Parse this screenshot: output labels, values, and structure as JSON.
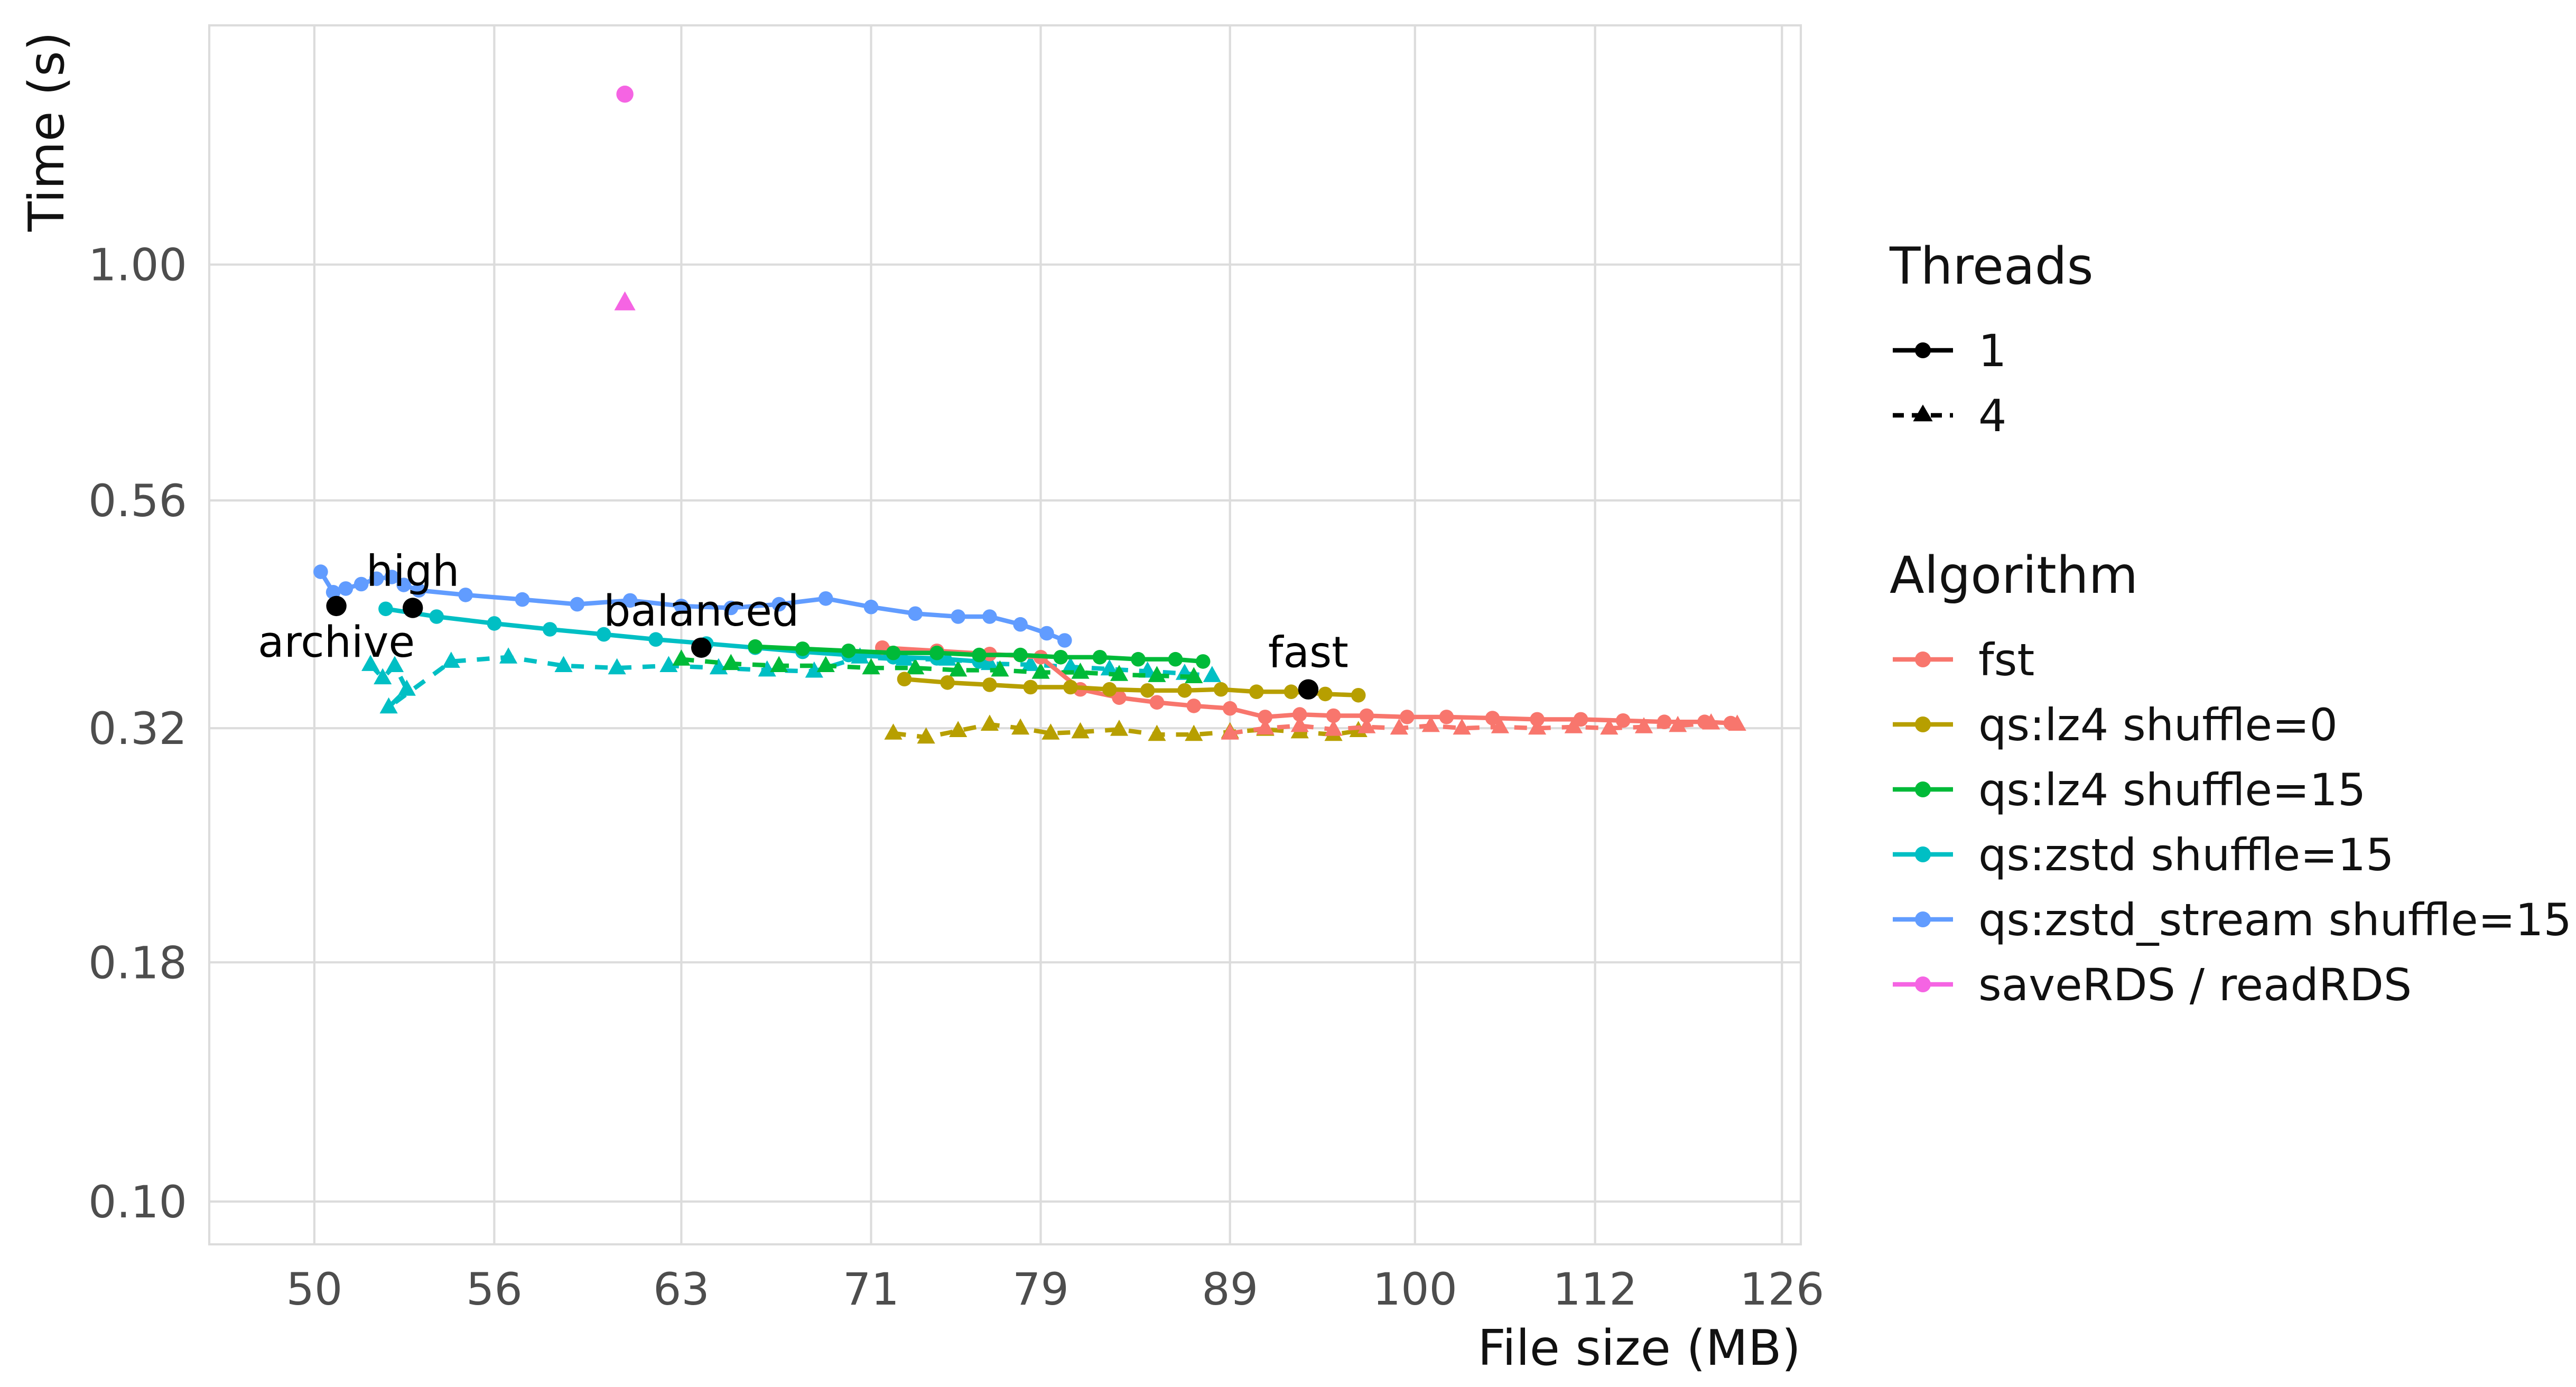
{
  "page": {
    "background": "#FFFFFF"
  },
  "legend": {
    "threads": {
      "title": "Threads",
      "items": [
        {
          "label": "1",
          "marker": "circle",
          "line": "solid"
        },
        {
          "label": "4",
          "marker": "triangle",
          "line": "dashed"
        }
      ]
    },
    "algorithm": {
      "title": "Algorithm",
      "items": [
        {
          "label": "fst",
          "color": "#F8766D"
        },
        {
          "label": "qs:lz4 shuffle=0",
          "color": "#B79F00"
        },
        {
          "label": "qs:lz4 shuffle=15",
          "color": "#00BA38"
        },
        {
          "label": "qs:zstd shuffle=15",
          "color": "#00BFC4"
        },
        {
          "label": "qs:zstd_stream shuffle=15",
          "color": "#619CFF"
        },
        {
          "label": "saveRDS / readRDS",
          "color": "#F564E3"
        }
      ]
    }
  },
  "chart_data": {
    "type": "line",
    "title": "",
    "xlabel": "File size (MB)",
    "ylabel": "Time (s)",
    "x_scale": "log10",
    "y_scale": "log10",
    "x_domain": [
      46.8,
      127.5
    ],
    "y_domain": [
      0.09,
      1.8
    ],
    "x_ticks": [
      50,
      56,
      63,
      71,
      79,
      89,
      100,
      112,
      126
    ],
    "x_tick_labels": [
      "50",
      "56",
      "63",
      "71",
      "79",
      "89",
      "100",
      "112",
      "126"
    ],
    "y_ticks": [
      0.1,
      0.18,
      0.32,
      0.56,
      1.0
    ],
    "y_tick_labels": [
      "0.10",
      "0.18",
      "0.32",
      "0.56",
      "1.00"
    ],
    "grid": true,
    "grid_color": "#DCDCDC",
    "legend_position": "right",
    "series": [
      {
        "name": "qs:zstd shuffle=15",
        "threads": 4,
        "color": "#00BFC4",
        "line": "dashed",
        "marker": "triangle",
        "points": [
          [
            51.8,
            0.374
          ],
          [
            52.2,
            0.362
          ],
          [
            52.6,
            0.373
          ],
          [
            53.0,
            0.352
          ],
          [
            52.4,
            0.337
          ],
          [
            54.5,
            0.377
          ],
          [
            56.5,
            0.381
          ],
          [
            58.5,
            0.373
          ],
          [
            60.5,
            0.371
          ],
          [
            62.5,
            0.373
          ],
          [
            64.5,
            0.371
          ],
          [
            66.5,
            0.369
          ],
          [
            68.5,
            0.368
          ],
          [
            70.5,
            0.381
          ],
          [
            72.5,
            0.379
          ],
          [
            74.5,
            0.379
          ],
          [
            76.5,
            0.375
          ],
          [
            78.5,
            0.374
          ],
          [
            80.5,
            0.372
          ],
          [
            82.5,
            0.37
          ],
          [
            84.5,
            0.368
          ],
          [
            86.5,
            0.366
          ],
          [
            88.0,
            0.364
          ]
        ]
      },
      {
        "name": "qs:lz4 shuffle=15",
        "threads": 4,
        "color": "#00BA38",
        "line": "dashed",
        "marker": "triangle",
        "points": [
          [
            63.0,
            0.379
          ],
          [
            65.0,
            0.375
          ],
          [
            67.0,
            0.373
          ],
          [
            69.0,
            0.373
          ],
          [
            71.0,
            0.371
          ],
          [
            73.0,
            0.371
          ],
          [
            75.0,
            0.369
          ],
          [
            77.0,
            0.369
          ],
          [
            79.0,
            0.367
          ],
          [
            81.0,
            0.367
          ],
          [
            83.0,
            0.365
          ],
          [
            85.0,
            0.364
          ],
          [
            87.0,
            0.363
          ]
        ]
      },
      {
        "name": "qs:lz4 shuffle=0",
        "threads": 4,
        "color": "#B79F00",
        "line": "dashed",
        "marker": "triangle",
        "points": [
          [
            72.0,
            0.316
          ],
          [
            73.5,
            0.313
          ],
          [
            75.0,
            0.318
          ],
          [
            76.5,
            0.323
          ],
          [
            78.0,
            0.32
          ],
          [
            79.5,
            0.316
          ],
          [
            81.0,
            0.317
          ],
          [
            83.0,
            0.319
          ],
          [
            85.0,
            0.315
          ],
          [
            87.0,
            0.315
          ],
          [
            89.0,
            0.317
          ],
          [
            91.0,
            0.319
          ],
          [
            93.0,
            0.317
          ],
          [
            95.0,
            0.315
          ],
          [
            96.5,
            0.318
          ]
        ]
      },
      {
        "name": "fst",
        "threads": 4,
        "color": "#F8766D",
        "line": "dashed",
        "marker": "triangle",
        "points": [
          [
            89.0,
            0.316
          ],
          [
            91.0,
            0.32
          ],
          [
            93.0,
            0.322
          ],
          [
            95.0,
            0.319
          ],
          [
            97.0,
            0.321
          ],
          [
            99.0,
            0.32
          ],
          [
            101.0,
            0.322
          ],
          [
            103.0,
            0.32
          ],
          [
            105.5,
            0.321
          ],
          [
            108.0,
            0.32
          ],
          [
            110.5,
            0.321
          ],
          [
            113.0,
            0.32
          ],
          [
            115.5,
            0.321
          ],
          [
            118.0,
            0.322
          ],
          [
            120.5,
            0.324
          ],
          [
            122.5,
            0.323
          ]
        ]
      },
      {
        "name": "qs:zstd_stream shuffle=15",
        "threads": 1,
        "color": "#619CFF",
        "line": "solid",
        "marker": "circle",
        "points": [
          [
            50.2,
            0.47
          ],
          [
            50.6,
            0.447
          ],
          [
            51.0,
            0.451
          ],
          [
            51.5,
            0.456
          ],
          [
            52.0,
            0.462
          ],
          [
            52.5,
            0.464
          ],
          [
            52.9,
            0.455
          ],
          [
            53.4,
            0.449
          ],
          [
            55.0,
            0.444
          ],
          [
            57.0,
            0.439
          ],
          [
            59.0,
            0.434
          ],
          [
            61.0,
            0.438
          ],
          [
            63.0,
            0.432
          ],
          [
            65.0,
            0.43
          ],
          [
            67.0,
            0.434
          ],
          [
            69.0,
            0.44
          ],
          [
            71.0,
            0.431
          ],
          [
            73.0,
            0.424
          ],
          [
            75.0,
            0.421
          ],
          [
            76.5,
            0.421
          ],
          [
            78.0,
            0.413
          ],
          [
            79.3,
            0.404
          ],
          [
            80.2,
            0.397
          ]
        ]
      },
      {
        "name": "qs:zstd shuffle=15",
        "threads": 1,
        "color": "#00BFC4",
        "line": "solid",
        "marker": "circle",
        "points": [
          [
            52.3,
            0.429
          ],
          [
            54.0,
            0.421
          ],
          [
            56.0,
            0.414
          ],
          [
            58.0,
            0.408
          ],
          [
            60.0,
            0.403
          ],
          [
            62.0,
            0.398
          ],
          [
            64.0,
            0.394
          ],
          [
            66.0,
            0.39
          ],
          [
            68.0,
            0.386
          ],
          [
            70.0,
            0.383
          ],
          [
            72.0,
            0.381
          ],
          [
            74.0,
            0.38
          ],
          [
            76.0,
            0.377
          ]
        ]
      },
      {
        "name": "fst",
        "threads": 1,
        "color": "#F8766D",
        "line": "solid",
        "marker": "circle",
        "points": [
          [
            71.5,
            0.39
          ],
          [
            74.0,
            0.387
          ],
          [
            76.5,
            0.384
          ],
          [
            79.0,
            0.381
          ],
          [
            81.0,
            0.352
          ],
          [
            83.0,
            0.345
          ],
          [
            85.0,
            0.341
          ],
          [
            87.0,
            0.338
          ],
          [
            89.0,
            0.336
          ],
          [
            91.0,
            0.329
          ],
          [
            93.0,
            0.331
          ],
          [
            95.0,
            0.33
          ],
          [
            97.0,
            0.33
          ],
          [
            99.5,
            0.329
          ],
          [
            102.0,
            0.329
          ],
          [
            105.0,
            0.328
          ],
          [
            108.0,
            0.327
          ],
          [
            111.0,
            0.327
          ],
          [
            114.0,
            0.326
          ],
          [
            117.0,
            0.325
          ],
          [
            120.0,
            0.325
          ],
          [
            122.0,
            0.324
          ]
        ]
      },
      {
        "name": "qs:lz4 shuffle=15",
        "threads": 1,
        "color": "#00BA38",
        "line": "solid",
        "marker": "circle",
        "points": [
          [
            66.0,
            0.391
          ],
          [
            68.0,
            0.389
          ],
          [
            70.0,
            0.387
          ],
          [
            72.0,
            0.385
          ],
          [
            74.0,
            0.385
          ],
          [
            76.0,
            0.383
          ],
          [
            78.0,
            0.383
          ],
          [
            80.0,
            0.381
          ],
          [
            82.0,
            0.381
          ],
          [
            84.0,
            0.379
          ],
          [
            86.0,
            0.379
          ],
          [
            87.5,
            0.377
          ]
        ]
      },
      {
        "name": "qs:lz4 shuffle=0",
        "threads": 1,
        "color": "#B79F00",
        "line": "solid",
        "marker": "circle",
        "points": [
          [
            72.5,
            0.361
          ],
          [
            74.5,
            0.358
          ],
          [
            76.5,
            0.356
          ],
          [
            78.5,
            0.354
          ],
          [
            80.5,
            0.354
          ],
          [
            82.5,
            0.352
          ],
          [
            84.5,
            0.351
          ],
          [
            86.5,
            0.351
          ],
          [
            88.5,
            0.352
          ],
          [
            90.5,
            0.35
          ],
          [
            92.5,
            0.35
          ],
          [
            94.5,
            0.348
          ],
          [
            96.5,
            0.347
          ]
        ]
      },
      {
        "name": "saveRDS / readRDS",
        "threads": 1,
        "color": "#F564E3",
        "line": "none",
        "marker": "circle",
        "size": 5.4,
        "points": [
          [
            60.8,
            1.52
          ]
        ]
      },
      {
        "name": "saveRDS / readRDS",
        "threads": 4,
        "color": "#F564E3",
        "line": "none",
        "marker": "triangle",
        "size": 5.4,
        "points": [
          [
            60.8,
            0.91
          ]
        ]
      }
    ],
    "annotations": [
      {
        "label": "archive",
        "x": 50.7,
        "y": 0.432,
        "label_pos": "below"
      },
      {
        "label": "high",
        "x": 53.2,
        "y": 0.43,
        "label_pos": "above"
      },
      {
        "label": "balanced",
        "x": 63.8,
        "y": 0.39,
        "label_pos": "above"
      },
      {
        "label": "fast",
        "x": 93.5,
        "y": 0.352,
        "label_pos": "above"
      }
    ]
  }
}
